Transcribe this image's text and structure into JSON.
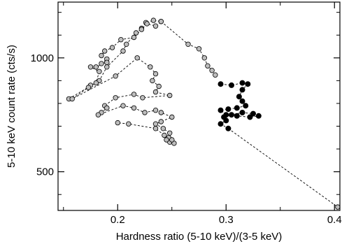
{
  "chart_data": {
    "type": "scatter",
    "xlabel": "Hardness ratio (5-10 keV)/(3-5 keV)",
    "ylabel": "5-10 keV count rate (cts/s)",
    "xlim": [
      0.145,
      0.405
    ],
    "ylim": [
      330,
      1245
    ],
    "x_ticks": [
      0.2,
      0.3,
      0.4
    ],
    "x_tick_labels": [
      "0.2",
      "0.3",
      "0.4"
    ],
    "y_ticks": [
      500,
      1000
    ],
    "y_tick_labels": [
      "500",
      "1000"
    ],
    "grid": false,
    "legend": "none",
    "colors": {
      "grey_marker": "#bdbdbd",
      "black_marker": "#000000",
      "line": "#000000"
    },
    "series": [
      {
        "marker": "grey",
        "connected": true,
        "points": [
          [
            0.155,
            820
          ],
          [
            0.183,
            900
          ],
          [
            0.19,
            960
          ],
          [
            0.205,
            1030
          ],
          [
            0.208,
            1060
          ],
          [
            0.217,
            1110
          ],
          [
            0.222,
            1130
          ],
          [
            0.226,
            1155
          ],
          [
            0.233,
            1165
          ],
          [
            0.24,
            1160
          ],
          [
            0.235,
            1140
          ],
          [
            0.227,
            1150
          ],
          [
            0.222,
            1125
          ],
          [
            0.215,
            1090
          ],
          [
            0.203,
            1080
          ],
          [
            0.195,
            1045
          ],
          [
            0.188,
            1030
          ],
          [
            0.185,
            1010
          ],
          [
            0.19,
            995
          ],
          [
            0.185,
            975
          ],
          [
            0.19,
            980
          ],
          [
            0.18,
            960
          ],
          [
            0.175,
            960
          ],
          [
            0.183,
            940
          ],
          [
            0.18,
            890
          ],
          [
            0.175,
            880
          ],
          [
            0.173,
            870
          ],
          [
            0.158,
            820
          ],
          [
            0.198,
            920
          ],
          [
            0.218,
            1000
          ],
          [
            0.23,
            960
          ],
          [
            0.235,
            930
          ],
          [
            0.232,
            900
          ],
          [
            0.238,
            875
          ],
          [
            0.235,
            850
          ],
          [
            0.248,
            835
          ],
          [
            0.223,
            825
          ],
          [
            0.215,
            840
          ],
          [
            0.198,
            825
          ],
          [
            0.188,
            790
          ],
          [
            0.19,
            780
          ],
          [
            0.185,
            760
          ],
          [
            0.182,
            750
          ],
          [
            0.205,
            790
          ],
          [
            0.215,
            780
          ],
          [
            0.225,
            760
          ],
          [
            0.235,
            770
          ],
          [
            0.24,
            760
          ],
          [
            0.25,
            740
          ],
          [
            0.24,
            720
          ],
          [
            0.235,
            710
          ],
          [
            0.242,
            690
          ],
          [
            0.248,
            670
          ],
          [
            0.247,
            650
          ],
          [
            0.248,
            630
          ],
          [
            0.252,
            625
          ],
          [
            0.25,
            640
          ],
          [
            0.245,
            640
          ],
          [
            0.243,
            660
          ],
          [
            0.235,
            690
          ],
          [
            0.21,
            710
          ],
          [
            0.2,
            715
          ]
        ]
      },
      {
        "marker": "grey",
        "connected": true,
        "points": [
          [
            0.24,
            1160
          ],
          [
            0.265,
            1060
          ],
          [
            0.275,
            1040
          ],
          [
            0.28,
            1000
          ],
          [
            0.283,
            965
          ],
          [
            0.287,
            945
          ],
          [
            0.29,
            925
          ]
        ]
      },
      {
        "marker": "black",
        "connected": true,
        "points": [
          [
            0.295,
            885
          ],
          [
            0.305,
            880
          ],
          [
            0.315,
            890
          ],
          [
            0.32,
            885
          ],
          [
            0.315,
            860
          ],
          [
            0.312,
            830
          ],
          [
            0.315,
            810
          ],
          [
            0.318,
            790
          ],
          [
            0.31,
            780
          ],
          [
            0.302,
            775
          ],
          [
            0.295,
            770
          ],
          [
            0.3,
            750
          ],
          [
            0.31,
            745
          ],
          [
            0.322,
            740
          ],
          [
            0.33,
            745
          ],
          [
            0.325,
            755
          ],
          [
            0.315,
            760
          ],
          [
            0.305,
            750
          ],
          [
            0.298,
            740
          ],
          [
            0.3,
            725
          ],
          [
            0.295,
            710
          ],
          [
            0.302,
            690
          ]
        ]
      },
      {
        "marker": "grey",
        "connected": true,
        "points": [
          [
            0.302,
            690
          ],
          [
            0.403,
            345
          ]
        ]
      }
    ]
  }
}
